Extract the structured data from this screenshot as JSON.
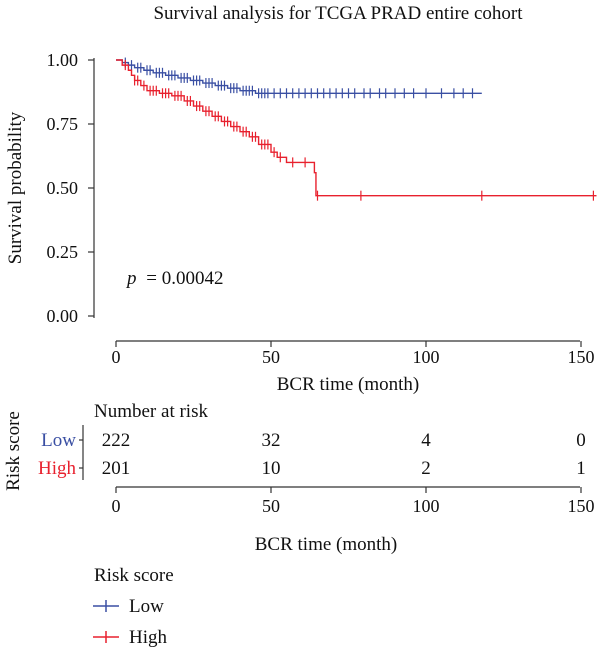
{
  "chart_data": {
    "type": "line",
    "title": "Survival analysis for TCGA PRAD entire cohort",
    "xlabel": "BCR time (month)",
    "ylabel": "Survival probability",
    "xlim": [
      0,
      155
    ],
    "ylim": [
      0,
      1.0
    ],
    "x_ticks": [
      "0",
      "50",
      "100",
      "150"
    ],
    "y_ticks": [
      "0.00",
      "0.25",
      "0.50",
      "0.75",
      "1.00"
    ],
    "annotation": {
      "p_label": "p",
      "p_value": "= 0.00042"
    },
    "series": [
      {
        "name": "Low",
        "color": "#3a4fa3",
        "steps": [
          [
            0,
            1.0
          ],
          [
            2,
            0.99
          ],
          [
            4,
            0.98
          ],
          [
            6,
            0.97
          ],
          [
            9,
            0.96
          ],
          [
            12,
            0.95
          ],
          [
            16,
            0.94
          ],
          [
            20,
            0.93
          ],
          [
            24,
            0.92
          ],
          [
            28,
            0.91
          ],
          [
            32,
            0.9
          ],
          [
            36,
            0.89
          ],
          [
            40,
            0.88
          ],
          [
            45,
            0.87
          ],
          [
            50,
            0.87
          ],
          [
            70,
            0.87
          ],
          [
            118,
            0.87
          ]
        ],
        "censor": [
          3,
          5,
          7,
          8,
          10,
          11,
          13,
          14,
          15,
          17,
          18,
          19,
          21,
          22,
          23,
          25,
          26,
          27,
          29,
          30,
          31,
          33,
          34,
          35,
          37,
          38,
          39,
          41,
          42,
          43,
          44,
          46,
          47,
          48,
          49,
          51,
          53,
          55,
          57,
          59,
          61,
          63,
          65,
          67,
          69,
          71,
          73,
          75,
          77,
          80,
          82,
          85,
          87,
          90,
          93,
          96,
          100,
          105,
          109,
          112,
          115
        ]
      },
      {
        "name": "High",
        "color": "#e8212e",
        "steps": [
          [
            0,
            1.0
          ],
          [
            2,
            0.98
          ],
          [
            4,
            0.96
          ],
          [
            5,
            0.94
          ],
          [
            6,
            0.92
          ],
          [
            8,
            0.9
          ],
          [
            10,
            0.88
          ],
          [
            14,
            0.87
          ],
          [
            18,
            0.86
          ],
          [
            22,
            0.84
          ],
          [
            25,
            0.82
          ],
          [
            28,
            0.8
          ],
          [
            31,
            0.78
          ],
          [
            34,
            0.76
          ],
          [
            37,
            0.74
          ],
          [
            40,
            0.72
          ],
          [
            43,
            0.7
          ],
          [
            46,
            0.67
          ],
          [
            50,
            0.64
          ],
          [
            52,
            0.62
          ],
          [
            55,
            0.6
          ],
          [
            64,
            0.56
          ],
          [
            64.5,
            0.47
          ],
          [
            80,
            0.47
          ],
          [
            118,
            0.47
          ],
          [
            155,
            0.47
          ]
        ],
        "censor": [
          3,
          6,
          7,
          9,
          11,
          12,
          13,
          15,
          16,
          17,
          19,
          20,
          21,
          23,
          24,
          26,
          27,
          29,
          30,
          32,
          33,
          35,
          36,
          38,
          39,
          41,
          42,
          44,
          45,
          47,
          48,
          49,
          51,
          53,
          57,
          61,
          65,
          79,
          118,
          154
        ]
      }
    ]
  },
  "risk_table": {
    "title": "Number at risk",
    "ylabel": "Risk score",
    "xlabel": "BCR time (month)",
    "x_ticks": [
      "0",
      "50",
      "100",
      "150"
    ],
    "rows": [
      {
        "label": "Low",
        "color": "#3a4fa3",
        "counts": [
          "222",
          "32",
          "4",
          "0"
        ]
      },
      {
        "label": "High",
        "color": "#e8212e",
        "counts": [
          "201",
          "10",
          "2",
          "1"
        ]
      }
    ]
  },
  "legend": {
    "title": "Risk score",
    "items": [
      {
        "label": "Low",
        "color": "#3a4fa3"
      },
      {
        "label": "High",
        "color": "#e8212e"
      }
    ]
  }
}
